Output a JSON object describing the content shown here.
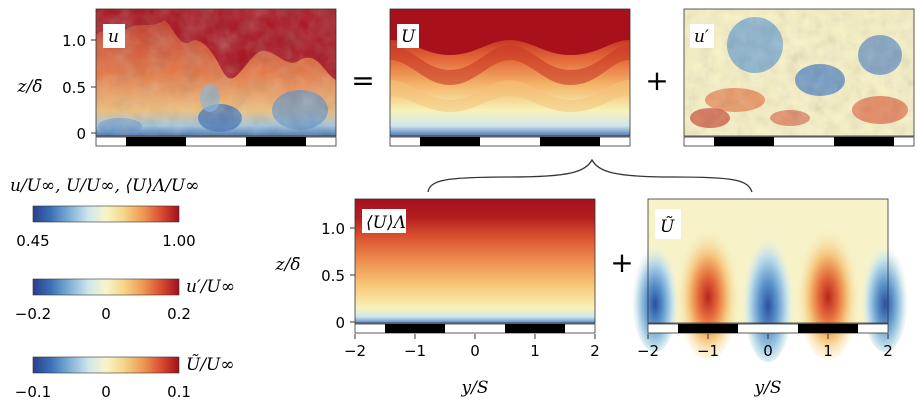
{
  "top_panels": [
    {
      "label": "u"
    },
    {
      "label": "U"
    },
    {
      "label": "u′"
    }
  ],
  "bottom_panels": [
    {
      "label": "⟨U⟩Λ"
    },
    {
      "label": "Ũ"
    }
  ],
  "operators": {
    "equals": "=",
    "plus_top": "+",
    "plus_bottom": "+"
  },
  "axes": {
    "top_ylabel": "z/δ̄",
    "bottom_ylabel": "z/δ̄",
    "xlabel": "y/S",
    "z_ticks": [
      "0",
      "0.5",
      "1.0"
    ],
    "y_ticks": [
      "−2",
      "−1",
      "0",
      "1",
      "2"
    ]
  },
  "colorbars": [
    {
      "title": "u/U∞, U/U∞, ⟨U⟩Λ/U∞",
      "ticks": [
        "0.45",
        "1.00"
      ]
    },
    {
      "title": "u′/U∞",
      "ticks": [
        "−0.2",
        "0",
        "0.2"
      ]
    },
    {
      "title": "Ũ/U∞",
      "ticks": [
        "−0.1",
        "0",
        "0.1"
      ]
    }
  ],
  "colors": {
    "low": "#2b4fa0",
    "mid": "#f7f5c0",
    "high": "#a8101b"
  }
}
